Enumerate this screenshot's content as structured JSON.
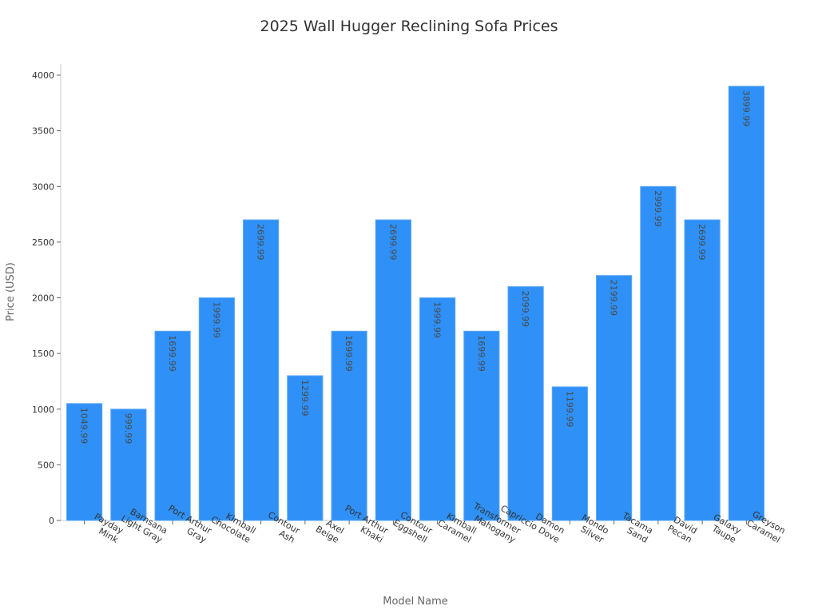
{
  "chart_data": {
    "type": "bar",
    "title": "2025 Wall Hugger Reclining Sofa Prices",
    "xlabel": "Model Name",
    "ylabel": "Price (USD)",
    "ylim": [
      0,
      4000
    ],
    "yticks": [
      0,
      500,
      1000,
      1500,
      2000,
      2500,
      3000,
      3500,
      4000
    ],
    "grid": false,
    "legend": "none",
    "bar_color": "#2f90f7",
    "categories": [
      [
        "Payday",
        "Mink"
      ],
      [
        "Barnsana",
        "Light Gray"
      ],
      [
        "Port Arthur",
        "Gray"
      ],
      [
        "Kimball",
        "Chocolate"
      ],
      [
        "Contour",
        "Ash"
      ],
      [
        "Axel",
        "Beige"
      ],
      [
        "Port Arthur",
        "Khaki"
      ],
      [
        "Contour",
        "Eggshell"
      ],
      [
        "Kimball",
        "Caramel"
      ],
      [
        "Transformer",
        "Mahogany"
      ],
      [
        "Damon",
        "Capriccio Dove"
      ],
      [
        "Mondo",
        "Silver"
      ],
      [
        "Tacama",
        "Sand"
      ],
      [
        "David",
        "Pecan"
      ],
      [
        "Galaxy",
        "Taupe"
      ],
      [
        "Greyson",
        "Caramel"
      ]
    ],
    "values": [
      1049.99,
      999.99,
      1699.99,
      1999.99,
      2699.99,
      1299.99,
      1699.99,
      2699.99,
      1999.99,
      1699.99,
      2099.99,
      1199.99,
      2199.99,
      2999.99,
      2699.99,
      3899.99
    ],
    "data_labels": [
      "1049.99",
      "999.99",
      "1699.99",
      "1999.99",
      "2699.99",
      "1299.99",
      "1699.99",
      "2699.99",
      "1999.99",
      "1699.99",
      "2099.99",
      "1199.99",
      "2199.99",
      "2999.99",
      "2699.99",
      "3899.99"
    ]
  }
}
